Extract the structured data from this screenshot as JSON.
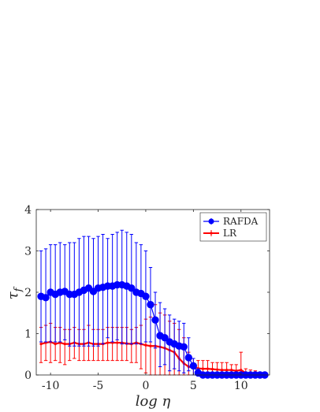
{
  "chart_data": {
    "type": "line",
    "xlabel": "log η",
    "ylabel": "τ_f",
    "xlim": [
      -11.5,
      13
    ],
    "ylim": [
      0,
      4
    ],
    "xticks": [
      -10,
      -5,
      0,
      5,
      10
    ],
    "xtick_labels": [
      "-10",
      "-5",
      "0",
      "5",
      "10"
    ],
    "yticks": [
      0,
      1,
      2,
      3,
      4
    ],
    "ytick_labels": [
      "0",
      "1",
      "2",
      "3",
      "4"
    ],
    "grid": false,
    "legend_position": "top-right",
    "series": [
      {
        "name": "RAFDA",
        "color": "#0000ff",
        "marker": "circle",
        "points": [
          {
            "x": -11.0,
            "y": 1.9,
            "lo": 0.8,
            "hi": 3.0
          },
          {
            "x": -10.5,
            "y": 1.87,
            "lo": 0.8,
            "hi": 3.05
          },
          {
            "x": -10.0,
            "y": 2.0,
            "lo": 0.8,
            "hi": 3.15
          },
          {
            "x": -9.5,
            "y": 1.95,
            "lo": 0.8,
            "hi": 3.15
          },
          {
            "x": -9.0,
            "y": 2.0,
            "lo": 0.8,
            "hi": 3.2
          },
          {
            "x": -8.5,
            "y": 2.02,
            "lo": 0.85,
            "hi": 3.15
          },
          {
            "x": -8.0,
            "y": 1.95,
            "lo": 0.7,
            "hi": 3.2
          },
          {
            "x": -7.5,
            "y": 1.95,
            "lo": 0.7,
            "hi": 3.2
          },
          {
            "x": -7.0,
            "y": 2.0,
            "lo": 0.7,
            "hi": 3.3
          },
          {
            "x": -6.5,
            "y": 2.05,
            "lo": 0.7,
            "hi": 3.35
          },
          {
            "x": -6.0,
            "y": 2.1,
            "lo": 0.7,
            "hi": 3.35
          },
          {
            "x": -5.5,
            "y": 2.02,
            "lo": 0.7,
            "hi": 3.3
          },
          {
            "x": -5.0,
            "y": 2.1,
            "lo": 0.7,
            "hi": 3.35
          },
          {
            "x": -4.5,
            "y": 2.12,
            "lo": 0.75,
            "hi": 3.4
          },
          {
            "x": -4.0,
            "y": 2.15,
            "lo": 0.9,
            "hi": 3.3
          },
          {
            "x": -3.5,
            "y": 2.15,
            "lo": 0.8,
            "hi": 3.4
          },
          {
            "x": -3.0,
            "y": 2.18,
            "lo": 0.85,
            "hi": 3.45
          },
          {
            "x": -2.5,
            "y": 2.18,
            "lo": 0.75,
            "hi": 3.5
          },
          {
            "x": -2.0,
            "y": 2.15,
            "lo": 0.75,
            "hi": 3.45
          },
          {
            "x": -1.5,
            "y": 2.1,
            "lo": 0.75,
            "hi": 3.4
          },
          {
            "x": -1.0,
            "y": 2.0,
            "lo": 0.75,
            "hi": 3.2
          },
          {
            "x": -0.5,
            "y": 1.97,
            "lo": 0.75,
            "hi": 3.15
          },
          {
            "x": 0.0,
            "y": 1.9,
            "lo": 0.8,
            "hi": 3.0
          },
          {
            "x": 0.5,
            "y": 1.7,
            "lo": 0.8,
            "hi": 2.6
          },
          {
            "x": 1.0,
            "y": 1.33,
            "lo": 0.65,
            "hi": 2.0
          },
          {
            "x": 1.5,
            "y": 0.95,
            "lo": 0.2,
            "hi": 1.75
          },
          {
            "x": 2.0,
            "y": 0.9,
            "lo": 0.25,
            "hi": 1.6
          },
          {
            "x": 2.5,
            "y": 0.8,
            "lo": 0.1,
            "hi": 1.45
          },
          {
            "x": 3.0,
            "y": 0.75,
            "lo": 0.15,
            "hi": 1.35
          },
          {
            "x": 3.5,
            "y": 0.7,
            "lo": 0.1,
            "hi": 1.3
          },
          {
            "x": 4.0,
            "y": 0.68,
            "lo": 0.05,
            "hi": 1.25
          },
          {
            "x": 4.5,
            "y": 0.42,
            "lo": 0.1,
            "hi": 0.9
          },
          {
            "x": 5.0,
            "y": 0.22,
            "lo": 0.0,
            "hi": 0.4
          },
          {
            "x": 5.5,
            "y": 0.05,
            "lo": 0.0,
            "hi": 0.15
          },
          {
            "x": 6.0,
            "y": 0.0,
            "lo": 0.0,
            "hi": 0.05
          },
          {
            "x": 6.5,
            "y": 0.0,
            "lo": 0.0,
            "hi": 0.02
          },
          {
            "x": 7.0,
            "y": 0.0,
            "lo": 0.0,
            "hi": 0.02
          },
          {
            "x": 7.5,
            "y": 0.0,
            "lo": 0.0,
            "hi": 0.02
          },
          {
            "x": 8.0,
            "y": 0.0,
            "lo": 0.0,
            "hi": 0.02
          },
          {
            "x": 8.5,
            "y": 0.0,
            "lo": 0.0,
            "hi": 0.02
          },
          {
            "x": 9.0,
            "y": 0.0,
            "lo": 0.0,
            "hi": 0.02
          },
          {
            "x": 9.5,
            "y": 0.0,
            "lo": 0.0,
            "hi": 0.02
          },
          {
            "x": 10.0,
            "y": 0.0,
            "lo": 0.0,
            "hi": 0.02
          },
          {
            "x": 10.5,
            "y": 0.0,
            "lo": 0.0,
            "hi": 0.02
          },
          {
            "x": 11.0,
            "y": 0.0,
            "lo": 0.0,
            "hi": 0.02
          },
          {
            "x": 11.5,
            "y": 0.0,
            "lo": 0.0,
            "hi": 0.02
          },
          {
            "x": 12.0,
            "y": 0.0,
            "lo": 0.0,
            "hi": 0.02
          },
          {
            "x": 12.5,
            "y": 0.0,
            "lo": 0.0,
            "hi": 0.02
          }
        ]
      },
      {
        "name": "LR",
        "color": "#ff0000",
        "marker": "dot",
        "points": [
          {
            "x": -11.0,
            "y": 0.75,
            "lo": 0.3,
            "hi": 1.15
          },
          {
            "x": -10.5,
            "y": 0.78,
            "lo": 0.35,
            "hi": 1.2
          },
          {
            "x": -10.0,
            "y": 0.8,
            "lo": 0.3,
            "hi": 1.25
          },
          {
            "x": -9.5,
            "y": 0.75,
            "lo": 0.35,
            "hi": 1.15
          },
          {
            "x": -9.0,
            "y": 0.78,
            "lo": 0.3,
            "hi": 1.15
          },
          {
            "x": -8.5,
            "y": 0.75,
            "lo": 0.25,
            "hi": 1.1
          },
          {
            "x": -8.0,
            "y": 0.75,
            "lo": 0.35,
            "hi": 1.1
          },
          {
            "x": -7.5,
            "y": 0.78,
            "lo": 0.4,
            "hi": 1.15
          },
          {
            "x": -7.0,
            "y": 0.75,
            "lo": 0.35,
            "hi": 1.1
          },
          {
            "x": -6.5,
            "y": 0.75,
            "lo": 0.35,
            "hi": 1.1
          },
          {
            "x": -6.0,
            "y": 0.78,
            "lo": 0.35,
            "hi": 1.2
          },
          {
            "x": -5.5,
            "y": 0.75,
            "lo": 0.35,
            "hi": 1.1
          },
          {
            "x": -5.0,
            "y": 0.75,
            "lo": 0.35,
            "hi": 1.1
          },
          {
            "x": -4.5,
            "y": 0.75,
            "lo": 0.35,
            "hi": 1.1
          },
          {
            "x": -4.0,
            "y": 0.78,
            "lo": 0.35,
            "hi": 1.15
          },
          {
            "x": -3.5,
            "y": 0.78,
            "lo": 0.35,
            "hi": 1.15
          },
          {
            "x": -3.0,
            "y": 0.78,
            "lo": 0.35,
            "hi": 1.15
          },
          {
            "x": -2.5,
            "y": 0.78,
            "lo": 0.35,
            "hi": 1.15
          },
          {
            "x": -2.0,
            "y": 0.76,
            "lo": 0.35,
            "hi": 1.15
          },
          {
            "x": -1.5,
            "y": 0.75,
            "lo": 0.3,
            "hi": 1.1
          },
          {
            "x": -1.0,
            "y": 0.78,
            "lo": 0.3,
            "hi": 1.15
          },
          {
            "x": -0.5,
            "y": 0.75,
            "lo": 0.15,
            "hi": 1.2
          },
          {
            "x": 0.0,
            "y": 0.72,
            "lo": 0.05,
            "hi": 1.35
          },
          {
            "x": 0.5,
            "y": 0.7,
            "lo": 0.0,
            "hi": 1.4
          },
          {
            "x": 1.0,
            "y": 0.7,
            "lo": 0.0,
            "hi": 1.7
          },
          {
            "x": 1.5,
            "y": 0.68,
            "lo": 0.0,
            "hi": 1.5
          },
          {
            "x": 2.0,
            "y": 0.65,
            "lo": 0.0,
            "hi": 1.45
          },
          {
            "x": 2.5,
            "y": 0.6,
            "lo": 0.0,
            "hi": 1.3
          },
          {
            "x": 3.0,
            "y": 0.55,
            "lo": 0.0,
            "hi": 1.25
          },
          {
            "x": 3.5,
            "y": 0.4,
            "lo": 0.0,
            "hi": 1.1
          },
          {
            "x": 4.0,
            "y": 0.28,
            "lo": 0.0,
            "hi": 0.9
          },
          {
            "x": 4.5,
            "y": 0.2,
            "lo": 0.0,
            "hi": 0.55
          },
          {
            "x": 5.0,
            "y": 0.18,
            "lo": 0.0,
            "hi": 0.4
          },
          {
            "x": 5.5,
            "y": 0.16,
            "lo": 0.0,
            "hi": 0.35
          },
          {
            "x": 6.0,
            "y": 0.15,
            "lo": 0.0,
            "hi": 0.35
          },
          {
            "x": 6.5,
            "y": 0.15,
            "lo": 0.0,
            "hi": 0.35
          },
          {
            "x": 7.0,
            "y": 0.14,
            "lo": 0.0,
            "hi": 0.3
          },
          {
            "x": 7.5,
            "y": 0.13,
            "lo": 0.0,
            "hi": 0.3
          },
          {
            "x": 8.0,
            "y": 0.12,
            "lo": 0.0,
            "hi": 0.3
          },
          {
            "x": 8.5,
            "y": 0.12,
            "lo": 0.0,
            "hi": 0.3
          },
          {
            "x": 9.0,
            "y": 0.12,
            "lo": 0.0,
            "hi": 0.25
          },
          {
            "x": 9.5,
            "y": 0.1,
            "lo": 0.0,
            "hi": 0.25
          },
          {
            "x": 10.0,
            "y": 0.12,
            "lo": 0.0,
            "hi": 0.55
          },
          {
            "x": 10.5,
            "y": 0.05,
            "lo": 0.0,
            "hi": 0.15
          },
          {
            "x": 11.0,
            "y": 0.04,
            "lo": 0.0,
            "hi": 0.12
          },
          {
            "x": 11.5,
            "y": 0.02,
            "lo": 0.0,
            "hi": 0.1
          },
          {
            "x": 12.0,
            "y": 0.01,
            "lo": 0.0,
            "hi": 0.05
          },
          {
            "x": 12.5,
            "y": 0.01,
            "lo": 0.0,
            "hi": 0.04
          }
        ]
      }
    ]
  }
}
